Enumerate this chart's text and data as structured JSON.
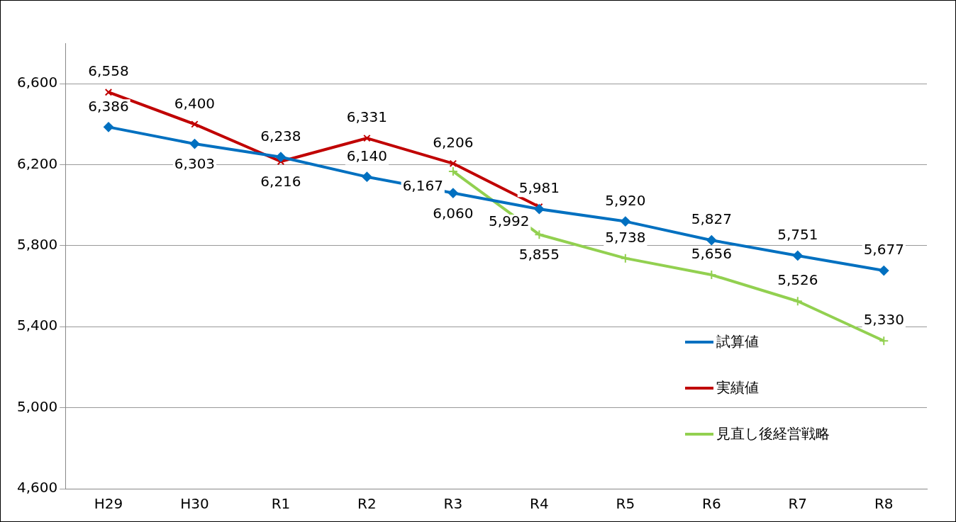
{
  "chart_data": {
    "type": "line",
    "categories": [
      "H29",
      "H30",
      "R1",
      "R2",
      "R3",
      "R4",
      "R5",
      "R6",
      "R7",
      "R8"
    ],
    "series": [
      {
        "name": "試算値",
        "color": "#0070c0",
        "marker": "diamond",
        "values": [
          6386,
          6303,
          6238,
          6140,
          6060,
          5981,
          5920,
          5827,
          5751,
          5677
        ],
        "value_labels": [
          "6,386",
          "6,303",
          "6,238",
          "6,140",
          "6,060",
          "5,981",
          "5,920",
          "5,827",
          "5,751",
          "5,677"
        ]
      },
      {
        "name": "実績値",
        "color": "#c00000",
        "marker": "cross",
        "values": [
          6558,
          6400,
          6216,
          6331,
          6206,
          5992,
          null,
          null,
          null,
          null
        ],
        "value_labels": [
          "6,558",
          "6,400",
          "6,216",
          "6,331",
          "6,206",
          "5,992",
          null,
          null,
          null,
          null
        ]
      },
      {
        "name": "見直し後経営戦略",
        "color": "#92d050",
        "marker": "plus",
        "values": [
          null,
          null,
          null,
          null,
          6167,
          5855,
          5738,
          5656,
          5526,
          5330
        ],
        "value_labels": [
          null,
          null,
          null,
          null,
          "6,167",
          "5,855",
          "5,738",
          "5,656",
          "5,526",
          "5,330"
        ]
      }
    ],
    "ylim": [
      4600,
      6800
    ],
    "yticks": [
      {
        "value": 4600,
        "label": "4,600"
      },
      {
        "value": 5000,
        "label": "5,000"
      },
      {
        "value": 5400,
        "label": "5,400"
      },
      {
        "value": 5800,
        "label": "5,800"
      },
      {
        "value": 6200,
        "label": "6,200"
      },
      {
        "value": 6600,
        "label": "6,600"
      }
    ],
    "grid": "y",
    "legend": "bottom right"
  }
}
